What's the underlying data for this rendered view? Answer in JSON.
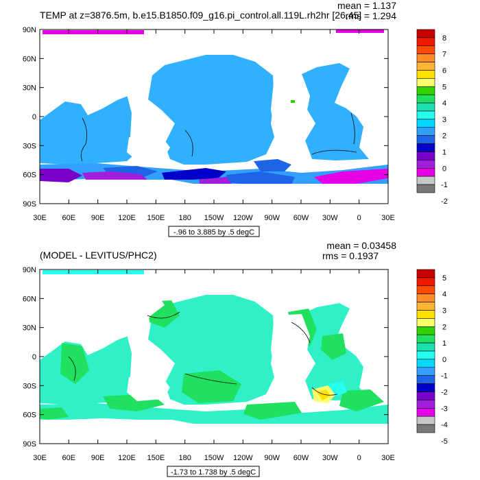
{
  "panels": [
    {
      "title": "TEMP at z=3876.5m, b.e15.B1850.f09_g16.pi_control.all.119L.rh2hr [26,45]",
      "mean_text": "mean = 1.137",
      "rms_text": "rms = 1.294",
      "range_text": "-.96 to 3.885 by .5 degC",
      "legend_labels": [
        "8",
        "7",
        "6",
        "5",
        "4",
        "3",
        "2",
        "1",
        "0",
        "-1",
        "-2"
      ]
    },
    {
      "title": "(MODEL - LEVITUS/PHC2)",
      "mean_text": "mean = 0.03458",
      "rms_text": "rms = 0.1937",
      "range_text": "-1.73 to 1.738 by .5 degC",
      "legend_labels": [
        "5",
        "4",
        "3",
        "2",
        "1",
        "0",
        "-1",
        "-2",
        "-3",
        "-4",
        "-5"
      ]
    }
  ],
  "axes": {
    "lat_labels": [
      "90N",
      "60N",
      "30N",
      "0",
      "30S",
      "60S",
      "90S"
    ],
    "lon_labels": [
      "30E",
      "60E",
      "90E",
      "120E",
      "150E",
      "180",
      "150W",
      "120W",
      "90W",
      "60W",
      "30W",
      "0",
      "30E"
    ]
  },
  "colors": {
    "palette": [
      "#c80000",
      "#ee1a00",
      "#ff4c00",
      "#ff8c28",
      "#ffb432",
      "#ffe100",
      "#ffff6e",
      "#32d200",
      "#20e060",
      "#1ce0b0",
      "#26ffee",
      "#00d8ff",
      "#33a0ff",
      "#1e64e6",
      "#0000c8",
      "#7800c8",
      "#a01edc",
      "#e600e6",
      "#c8c8c8",
      "#787878"
    ],
    "panel1_ocean": "#30b0ff",
    "panel2_ocean": "#30f0c8"
  },
  "chart_data": [
    {
      "type": "heatmap",
      "title": "TEMP at z=3876.5m, b.e15.B1850.f09_g16.pi_control.all.119L.rh2hr [26,45]",
      "xlabel": "",
      "ylabel": "",
      "x_ticks": [
        "30E",
        "60E",
        "90E",
        "120E",
        "150E",
        "180",
        "150W",
        "120W",
        "90W",
        "60W",
        "30W",
        "0",
        "30E"
      ],
      "y_ticks": [
        "90N",
        "60N",
        "30N",
        "0",
        "30S",
        "60S",
        "90S"
      ],
      "colorbar_levels": [
        -2,
        -1,
        0,
        1,
        2,
        3,
        4,
        5,
        6,
        7,
        8
      ],
      "mean": 1.137,
      "rms": 1.294,
      "data_min": -0.96,
      "data_max": 3.885,
      "contour_interval": 0.5,
      "units": "degC"
    },
    {
      "type": "heatmap",
      "title": "(MODEL - LEVITUS/PHC2)",
      "xlabel": "",
      "ylabel": "",
      "x_ticks": [
        "30E",
        "60E",
        "90E",
        "120E",
        "150E",
        "180",
        "150W",
        "120W",
        "90W",
        "60W",
        "30W",
        "0",
        "30E"
      ],
      "y_ticks": [
        "90N",
        "60N",
        "30N",
        "0",
        "30S",
        "60S",
        "90S"
      ],
      "colorbar_levels": [
        -5,
        -4,
        -3,
        -2,
        -1,
        0,
        1,
        2,
        3,
        4,
        5
      ],
      "mean": 0.03458,
      "rms": 0.1937,
      "data_min": -1.73,
      "data_max": 1.738,
      "contour_interval": 0.5,
      "units": "degC"
    }
  ]
}
